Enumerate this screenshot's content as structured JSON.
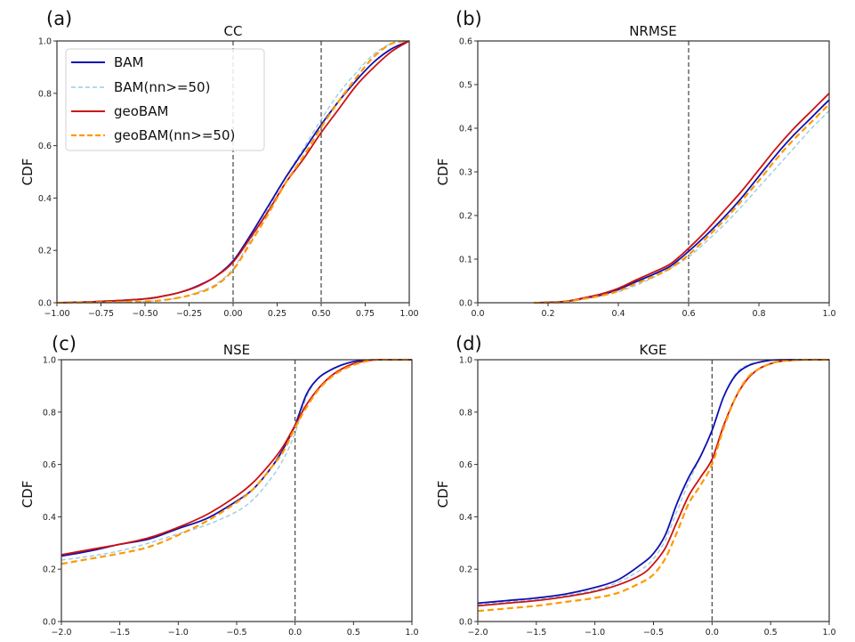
{
  "series_styles": [
    {
      "name": "BAM",
      "color": "#1010b0",
      "dash": "solid"
    },
    {
      "name": "BAM(nn>=50)",
      "color": "#9ccbe4",
      "dash": "dashed"
    },
    {
      "name": "geoBAM",
      "color": "#cc1111",
      "dash": "solid"
    },
    {
      "name": "geoBAM(nn>=50)",
      "color": "#ff9900",
      "dash": "dashed"
    }
  ],
  "chart_data": [
    {
      "panel": "(a)",
      "type": "line",
      "title": "CC",
      "xlabel": "",
      "ylabel": "CDF",
      "xlim": [
        -1.0,
        1.0
      ],
      "ylim": [
        0.0,
        1.0
      ],
      "xticks": [
        "-1.00",
        "-0.75",
        "-0.50",
        "-0.25",
        "0.00",
        "0.25",
        "0.50",
        "0.75",
        "1.00"
      ],
      "xtick_values": [
        -1.0,
        -0.75,
        -0.5,
        -0.25,
        0.0,
        0.25,
        0.5,
        0.75,
        1.0
      ],
      "yticks": [
        "0.0",
        "0.2",
        "0.4",
        "0.6",
        "0.8",
        "1.0"
      ],
      "ytick_values": [
        0.0,
        0.2,
        0.4,
        0.6,
        0.8,
        1.0
      ],
      "vlines": [
        0.0,
        0.5
      ],
      "legend": {
        "placement": "top-left",
        "entries": [
          "BAM",
          "BAM(nn>=50)",
          "geoBAM",
          "geoBAM(nn>=50)"
        ]
      },
      "x": [
        -1.0,
        -0.75,
        -0.5,
        -0.4,
        -0.3,
        -0.2,
        -0.1,
        0.0,
        0.1,
        0.2,
        0.3,
        0.4,
        0.5,
        0.6,
        0.7,
        0.8,
        0.9,
        1.0
      ],
      "series": [
        {
          "name": "BAM",
          "values": [
            0.0,
            0.005,
            0.015,
            0.025,
            0.04,
            0.065,
            0.1,
            0.16,
            0.26,
            0.37,
            0.48,
            0.58,
            0.68,
            0.77,
            0.85,
            0.92,
            0.97,
            1.0
          ]
        },
        {
          "name": "BAM(nn>=50)",
          "values": [
            0.0,
            0.002,
            0.005,
            0.01,
            0.02,
            0.04,
            0.07,
            0.13,
            0.24,
            0.36,
            0.48,
            0.59,
            0.7,
            0.8,
            0.88,
            0.95,
            0.99,
            1.0
          ]
        },
        {
          "name": "geoBAM",
          "values": [
            0.0,
            0.005,
            0.015,
            0.025,
            0.04,
            0.063,
            0.1,
            0.155,
            0.25,
            0.35,
            0.46,
            0.55,
            0.65,
            0.74,
            0.83,
            0.9,
            0.96,
            1.0
          ]
        },
        {
          "name": "geoBAM(nn>=50)",
          "values": [
            0.0,
            0.002,
            0.005,
            0.01,
            0.02,
            0.037,
            0.065,
            0.125,
            0.23,
            0.34,
            0.46,
            0.56,
            0.67,
            0.77,
            0.86,
            0.94,
            0.99,
            1.0
          ]
        }
      ]
    },
    {
      "panel": "(b)",
      "type": "line",
      "title": "NRMSE",
      "xlabel": "",
      "ylabel": "CDF",
      "xlim": [
        0.0,
        1.0
      ],
      "ylim": [
        0.0,
        0.6
      ],
      "xticks": [
        "0.0",
        "0.2",
        "0.4",
        "0.6",
        "0.8",
        "1.0"
      ],
      "xtick_values": [
        0.0,
        0.2,
        0.4,
        0.6,
        0.8,
        1.0
      ],
      "yticks": [
        "0.0",
        "0.1",
        "0.2",
        "0.3",
        "0.4",
        "0.5",
        "0.6"
      ],
      "ytick_values": [
        0.0,
        0.1,
        0.2,
        0.3,
        0.4,
        0.5,
        0.6
      ],
      "vlines": [
        0.6
      ],
      "x": [
        0.16,
        0.2,
        0.25,
        0.3,
        0.35,
        0.4,
        0.45,
        0.5,
        0.55,
        0.6,
        0.65,
        0.7,
        0.75,
        0.8,
        0.85,
        0.9,
        0.95,
        1.0
      ],
      "series": [
        {
          "name": "BAM",
          "values": [
            0.0,
            0.001,
            0.003,
            0.01,
            0.018,
            0.03,
            0.048,
            0.065,
            0.085,
            0.118,
            0.155,
            0.195,
            0.24,
            0.29,
            0.34,
            0.385,
            0.425,
            0.465
          ]
        },
        {
          "name": "BAM(nn>=50)",
          "values": [
            0.0,
            0.0,
            0.002,
            0.008,
            0.015,
            0.025,
            0.04,
            0.058,
            0.08,
            0.105,
            0.14,
            0.178,
            0.22,
            0.265,
            0.31,
            0.355,
            0.4,
            0.44
          ]
        },
        {
          "name": "geoBAM",
          "values": [
            0.0,
            0.001,
            0.003,
            0.011,
            0.02,
            0.033,
            0.052,
            0.07,
            0.09,
            0.125,
            0.165,
            0.21,
            0.255,
            0.305,
            0.355,
            0.4,
            0.44,
            0.48
          ]
        },
        {
          "name": "geoBAM(nn>=50)",
          "values": [
            0.0,
            0.0,
            0.002,
            0.009,
            0.016,
            0.027,
            0.044,
            0.06,
            0.08,
            0.11,
            0.148,
            0.188,
            0.233,
            0.28,
            0.33,
            0.375,
            0.415,
            0.455
          ]
        }
      ]
    },
    {
      "panel": "(c)",
      "type": "line",
      "title": "NSE",
      "xlabel": "",
      "ylabel": "CDF",
      "xlim": [
        -2.0,
        1.0
      ],
      "ylim": [
        0.0,
        1.0
      ],
      "xticks": [
        "-2.0",
        "-1.5",
        "-1.0",
        "-0.5",
        "0.0",
        "0.5",
        "1.0"
      ],
      "xtick_values": [
        -2.0,
        -1.5,
        -1.0,
        -0.5,
        0.0,
        0.5,
        1.0
      ],
      "yticks": [
        "0.0",
        "0.2",
        "0.4",
        "0.6",
        "0.8",
        "1.0"
      ],
      "ytick_values": [
        0.0,
        0.2,
        0.4,
        0.6,
        0.8,
        1.0
      ],
      "vlines": [
        0.0
      ],
      "x": [
        -2.0,
        -1.75,
        -1.5,
        -1.25,
        -1.0,
        -0.75,
        -0.5,
        -0.35,
        -0.2,
        -0.1,
        0.0,
        0.1,
        0.2,
        0.3,
        0.4,
        0.5,
        0.6,
        0.7,
        0.8,
        1.0
      ],
      "series": [
        {
          "name": "BAM",
          "values": [
            0.25,
            0.27,
            0.295,
            0.315,
            0.355,
            0.395,
            0.46,
            0.51,
            0.59,
            0.66,
            0.75,
            0.87,
            0.93,
            0.96,
            0.98,
            0.993,
            0.998,
            1.0,
            1.0,
            1.0
          ]
        },
        {
          "name": "BAM(nn>=50)",
          "values": [
            0.235,
            0.25,
            0.27,
            0.3,
            0.335,
            0.37,
            0.42,
            0.47,
            0.55,
            0.62,
            0.72,
            0.86,
            0.93,
            0.96,
            0.98,
            0.993,
            0.998,
            1.0,
            1.0,
            1.0
          ]
        },
        {
          "name": "geoBAM",
          "values": [
            0.255,
            0.275,
            0.295,
            0.32,
            0.36,
            0.41,
            0.48,
            0.535,
            0.61,
            0.67,
            0.75,
            0.83,
            0.89,
            0.935,
            0.965,
            0.985,
            0.995,
            1.0,
            1.0,
            1.0
          ]
        },
        {
          "name": "geoBAM(nn>=50)",
          "values": [
            0.22,
            0.24,
            0.26,
            0.285,
            0.33,
            0.385,
            0.455,
            0.51,
            0.59,
            0.65,
            0.74,
            0.82,
            0.885,
            0.93,
            0.96,
            0.98,
            0.993,
            1.0,
            1.0,
            1.0
          ]
        }
      ]
    },
    {
      "panel": "(d)",
      "type": "line",
      "title": "KGE",
      "xlabel": "",
      "ylabel": "CDF",
      "xlim": [
        -2.0,
        1.0
      ],
      "ylim": [
        0.0,
        1.0
      ],
      "xticks": [
        "-2.0",
        "-1.5",
        "-1.0",
        "-0.5",
        "0.0",
        "0.5",
        "1.0"
      ],
      "xtick_values": [
        -2.0,
        -1.5,
        -1.0,
        -0.5,
        0.0,
        0.5,
        1.0
      ],
      "yticks": [
        "0.0",
        "0.2",
        "0.4",
        "0.6",
        "0.8",
        "1.0"
      ],
      "ytick_values": [
        0.0,
        0.2,
        0.4,
        0.6,
        0.8,
        1.0
      ],
      "vlines": [
        0.0
      ],
      "x": [
        -2.0,
        -1.75,
        -1.5,
        -1.25,
        -1.0,
        -0.8,
        -0.6,
        -0.5,
        -0.4,
        -0.3,
        -0.2,
        -0.1,
        0.0,
        0.1,
        0.2,
        0.3,
        0.4,
        0.5,
        0.6,
        0.8,
        1.0
      ],
      "series": [
        {
          "name": "BAM",
          "values": [
            0.07,
            0.08,
            0.09,
            0.105,
            0.13,
            0.16,
            0.22,
            0.26,
            0.33,
            0.45,
            0.55,
            0.63,
            0.73,
            0.86,
            0.94,
            0.975,
            0.99,
            0.998,
            1.0,
            1.0,
            1.0
          ]
        },
        {
          "name": "BAM(nn>=50)",
          "values": [
            0.065,
            0.075,
            0.085,
            0.1,
            0.12,
            0.15,
            0.2,
            0.24,
            0.31,
            0.42,
            0.53,
            0.63,
            0.73,
            0.86,
            0.945,
            0.98,
            0.99,
            0.998,
            1.0,
            1.0,
            1.0
          ]
        },
        {
          "name": "geoBAM",
          "values": [
            0.06,
            0.07,
            0.08,
            0.095,
            0.115,
            0.14,
            0.18,
            0.22,
            0.28,
            0.38,
            0.48,
            0.55,
            0.62,
            0.75,
            0.855,
            0.925,
            0.965,
            0.985,
            0.995,
            1.0,
            1.0
          ]
        },
        {
          "name": "geoBAM(nn>=50)",
          "values": [
            0.04,
            0.05,
            0.06,
            0.075,
            0.09,
            0.11,
            0.15,
            0.18,
            0.24,
            0.34,
            0.45,
            0.52,
            0.6,
            0.74,
            0.855,
            0.93,
            0.965,
            0.985,
            0.995,
            1.0,
            1.0
          ]
        }
      ]
    }
  ]
}
